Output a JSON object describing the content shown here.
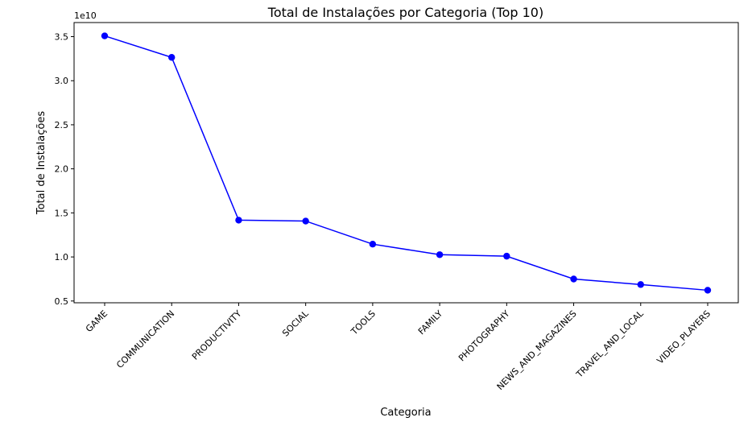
{
  "chart_data": {
    "type": "line",
    "title": "Total de Instalações por Categoria (Top 10)",
    "xlabel": "Categoria",
    "ylabel": "Total de Instalações",
    "y_offset_label": "1e10",
    "categories": [
      "GAME",
      "COMMUNICATION",
      "PRODUCTIVITY",
      "SOCIAL",
      "TOOLS",
      "FAMILY",
      "PHOTOGRAPHY",
      "NEWS_AND_MAGAZINES",
      "TRAVEL_AND_LOCAL",
      "VIDEO_PLAYERS"
    ],
    "values": [
      35086024415,
      32647276251,
      14176091369,
      14069867902,
      11452771915,
      10258263505,
      10088247655,
      7496317760,
      6868887146,
      6222002720
    ],
    "ylim": [
      4800000000,
      36600000000
    ],
    "yticks": [
      5000000000,
      10000000000,
      15000000000,
      20000000000,
      25000000000,
      30000000000,
      35000000000
    ],
    "ytick_labels": [
      "0.5",
      "1.0",
      "1.5",
      "2.0",
      "2.5",
      "3.0",
      "3.5"
    ],
    "series_color": "#0000ff",
    "grid": false,
    "legend": false
  }
}
